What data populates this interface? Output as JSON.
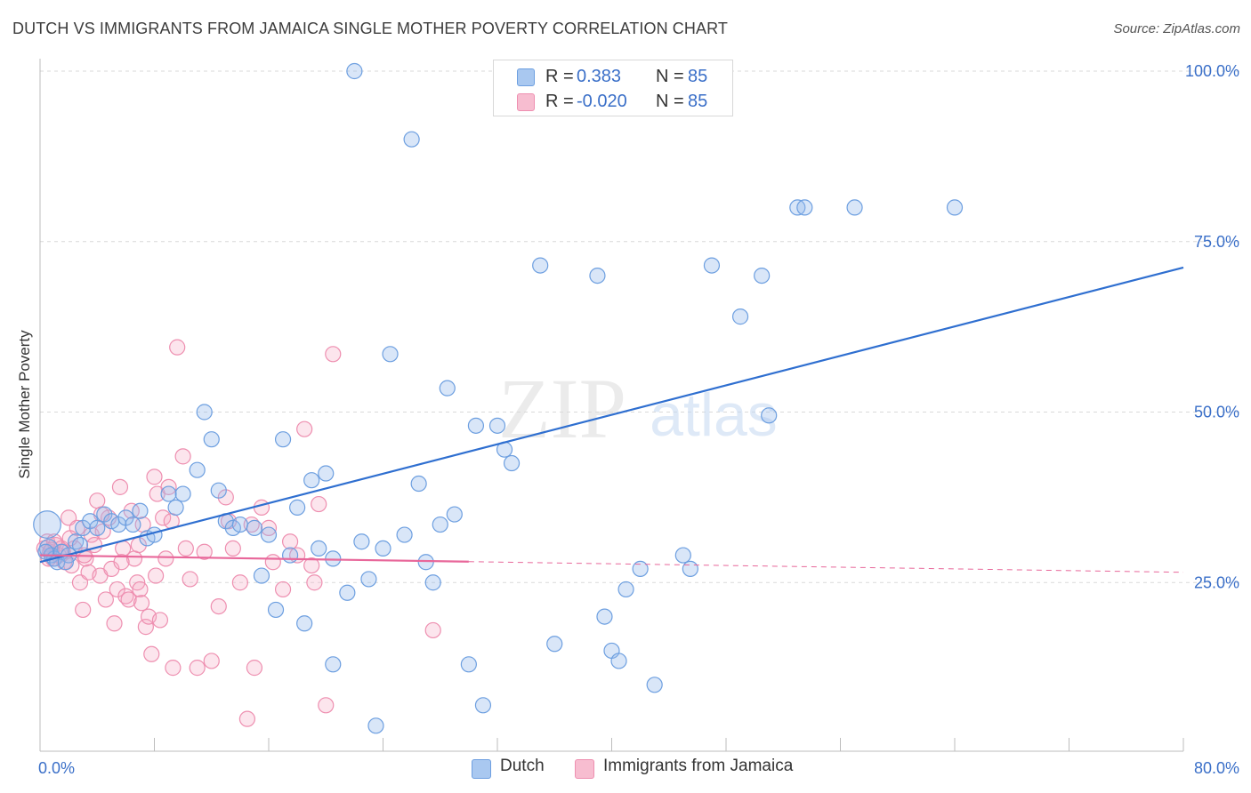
{
  "title": "DUTCH VS IMMIGRANTS FROM JAMAICA SINGLE MOTHER POVERTY CORRELATION CHART",
  "source": "Source: ZipAtlas.com",
  "watermark": {
    "zip": "ZIP",
    "atlas": "atlas"
  },
  "legend": {
    "rows": [
      {
        "r_label": "R =",
        "r_value": "0.383",
        "n_label": "N =",
        "n_value": "85",
        "color": "#a9c8f0"
      },
      {
        "r_label": "R =",
        "r_value": "-0.020",
        "n_label": "N =",
        "n_value": "85",
        "color": "#f7bdd0"
      }
    ]
  },
  "bottom_legend": [
    {
      "label": "Dutch",
      "color": "#a9c8f0"
    },
    {
      "label": "Immigrants from Jamaica",
      "color": "#f7bdd0"
    }
  ],
  "colors": {
    "dutch_fill": "rgba(147,184,236,0.35)",
    "dutch_stroke": "#6d9fe0",
    "dutch_line": "#2f6fd0",
    "jam_fill": "rgba(245,170,195,0.30)",
    "jam_stroke": "#ee8fb0",
    "jam_line": "#e8679a",
    "axis_text": "#3a6fc8",
    "grid": "#d9d9d9"
  },
  "chart_data": {
    "type": "scatter",
    "title": "DUTCH VS IMMIGRANTS FROM JAMAICA SINGLE MOTHER POVERTY CORRELATION CHART",
    "xlabel": "",
    "ylabel": "Single Mother Poverty",
    "xlim": [
      0,
      80
    ],
    "ylim": [
      0,
      105
    ],
    "x_tick_labels": [
      {
        "value": 0,
        "label": "0.0%"
      },
      {
        "value": 80,
        "label": "80.0%"
      }
    ],
    "y_tick_labels": [
      {
        "value": 25,
        "label": "25.0%"
      },
      {
        "value": 50,
        "label": "50.0%"
      },
      {
        "value": 75,
        "label": "75.0%"
      },
      {
        "value": 100,
        "label": "100.0%"
      }
    ],
    "grid": true,
    "series": [
      {
        "name": "Dutch",
        "r": 0.383,
        "n": 85,
        "trend": {
          "x": [
            0,
            80
          ],
          "y": [
            28.0,
            71.2
          ],
          "style": "solid"
        },
        "points": [
          [
            0.5,
            33.5,
            1.8
          ],
          [
            0.6,
            30.0,
            1.2
          ],
          [
            0.8,
            29.0,
            1.0
          ],
          [
            1.0,
            28.5,
            1.0
          ],
          [
            1.2,
            28.0,
            1.0
          ],
          [
            1.5,
            29.5,
            1.0
          ],
          [
            2.0,
            29.0,
            1.0
          ],
          [
            2.5,
            31.0,
            1.0
          ],
          [
            3.0,
            33.0,
            1.0
          ],
          [
            3.5,
            34.0,
            1.0
          ],
          [
            4.0,
            33.0,
            1.0
          ],
          [
            4.5,
            35.0,
            1.0
          ],
          [
            5.0,
            34.0,
            1.0
          ],
          [
            5.5,
            33.5,
            1.0
          ],
          [
            6.0,
            34.5,
            1.0
          ],
          [
            6.5,
            33.5,
            1.0
          ],
          [
            7.0,
            35.5,
            1.0
          ],
          [
            7.5,
            31.5,
            1.0
          ],
          [
            8.0,
            32.0,
            1.0
          ],
          [
            9.0,
            38.0,
            1.0
          ],
          [
            9.5,
            36.0,
            1.0
          ],
          [
            10.0,
            38.0,
            1.0
          ],
          [
            11.0,
            41.5,
            1.0
          ],
          [
            11.5,
            50.0,
            1.0
          ],
          [
            12.0,
            46.0,
            1.0
          ],
          [
            12.5,
            38.5,
            1.0
          ],
          [
            13.0,
            34.0,
            1.0
          ],
          [
            13.5,
            33.0,
            1.0
          ],
          [
            14.0,
            33.5,
            1.0
          ],
          [
            15.0,
            33.0,
            1.0
          ],
          [
            15.5,
            26.0,
            1.0
          ],
          [
            16.0,
            32.0,
            1.0
          ],
          [
            16.5,
            21.0,
            1.0
          ],
          [
            17.0,
            46.0,
            1.0
          ],
          [
            17.5,
            29.0,
            1.0
          ],
          [
            18.0,
            36.0,
            1.0
          ],
          [
            18.5,
            19.0,
            1.0
          ],
          [
            19.0,
            40.0,
            1.0
          ],
          [
            19.5,
            30.0,
            1.0
          ],
          [
            20.0,
            41.0,
            1.0
          ],
          [
            20.5,
            28.5,
            1.0
          ],
          [
            20.5,
            13.0,
            1.0
          ],
          [
            21.5,
            23.5,
            1.0
          ],
          [
            22.0,
            100.0,
            1.0
          ],
          [
            22.5,
            31.0,
            1.0
          ],
          [
            23.0,
            25.5,
            1.0
          ],
          [
            23.5,
            4.0,
            1.0
          ],
          [
            24.0,
            30.0,
            1.0
          ],
          [
            24.5,
            58.5,
            1.0
          ],
          [
            25.5,
            32.0,
            1.0
          ],
          [
            26.0,
            90.0,
            1.0
          ],
          [
            26.5,
            39.5,
            1.0
          ],
          [
            27.0,
            28.0,
            1.0
          ],
          [
            27.5,
            25.0,
            1.0
          ],
          [
            28.0,
            33.5,
            1.0
          ],
          [
            28.5,
            53.5,
            1.0
          ],
          [
            29.0,
            35.0,
            1.0
          ],
          [
            30.0,
            13.0,
            1.0
          ],
          [
            30.5,
            48.0,
            1.0
          ],
          [
            31.0,
            7.0,
            1.0
          ],
          [
            32.0,
            48.0,
            1.0
          ],
          [
            32.5,
            44.5,
            1.0
          ],
          [
            33.0,
            42.5,
            1.0
          ],
          [
            35.0,
            71.5,
            1.0
          ],
          [
            36.0,
            16.0,
            1.0
          ],
          [
            39.0,
            70.0,
            1.0
          ],
          [
            39.5,
            20.0,
            1.0
          ],
          [
            40.0,
            15.0,
            1.0
          ],
          [
            40.5,
            13.5,
            1.0
          ],
          [
            41.0,
            24.0,
            1.0
          ],
          [
            42.0,
            27.0,
            1.0
          ],
          [
            43.0,
            10.0,
            1.0
          ],
          [
            45.0,
            29.0,
            1.0
          ],
          [
            45.5,
            27.0,
            1.0
          ],
          [
            47.0,
            71.5,
            1.0
          ],
          [
            49.0,
            64.0,
            1.0
          ],
          [
            50.5,
            70.0,
            1.0
          ],
          [
            51.0,
            49.5,
            1.0
          ],
          [
            53.0,
            80.0,
            1.0
          ],
          [
            53.5,
            80.0,
            1.0
          ],
          [
            57.0,
            80.0,
            1.0
          ],
          [
            64.0,
            80.0,
            1.0
          ],
          [
            0.4,
            29.5,
            1.0
          ],
          [
            1.8,
            28.0,
            1.0
          ],
          [
            2.8,
            30.5,
            1.0
          ]
        ]
      },
      {
        "name": "Immigrants from Jamaica",
        "r": -0.02,
        "n": 85,
        "trend": {
          "x": [
            0,
            80
          ],
          "y": [
            29.0,
            26.5
          ],
          "solid_until": 30,
          "style": "solid-then-dashed"
        },
        "points": [
          [
            0.3,
            30.0,
            1.0
          ],
          [
            0.5,
            31.0,
            1.0
          ],
          [
            0.7,
            29.5,
            1.0
          ],
          [
            0.9,
            28.5,
            1.0
          ],
          [
            1.1,
            30.5,
            1.0
          ],
          [
            1.3,
            29.0,
            1.0
          ],
          [
            1.5,
            30.0,
            1.0
          ],
          [
            1.7,
            28.0,
            1.0
          ],
          [
            2.0,
            34.5,
            1.0
          ],
          [
            2.2,
            27.5,
            1.0
          ],
          [
            2.4,
            30.0,
            1.0
          ],
          [
            2.6,
            33.0,
            1.0
          ],
          [
            2.8,
            25.0,
            1.0
          ],
          [
            3.0,
            21.0,
            1.0
          ],
          [
            3.2,
            28.5,
            1.0
          ],
          [
            3.4,
            26.5,
            1.0
          ],
          [
            3.6,
            32.0,
            1.0
          ],
          [
            3.8,
            30.5,
            1.0
          ],
          [
            4.0,
            37.0,
            1.0
          ],
          [
            4.2,
            26.0,
            1.0
          ],
          [
            4.4,
            32.5,
            1.0
          ],
          [
            4.6,
            22.5,
            1.0
          ],
          [
            4.8,
            34.5,
            1.0
          ],
          [
            5.0,
            27.0,
            1.0
          ],
          [
            5.2,
            19.0,
            1.0
          ],
          [
            5.4,
            24.0,
            1.0
          ],
          [
            5.6,
            39.0,
            1.0
          ],
          [
            5.8,
            30.0,
            1.0
          ],
          [
            6.0,
            23.0,
            1.0
          ],
          [
            6.2,
            22.5,
            1.0
          ],
          [
            6.4,
            35.5,
            1.0
          ],
          [
            6.6,
            28.5,
            1.0
          ],
          [
            6.8,
            25.0,
            1.0
          ],
          [
            7.0,
            24.0,
            1.0
          ],
          [
            7.2,
            33.5,
            1.0
          ],
          [
            7.4,
            18.5,
            1.0
          ],
          [
            7.6,
            20.0,
            1.0
          ],
          [
            7.8,
            14.5,
            1.0
          ],
          [
            8.0,
            40.5,
            1.0
          ],
          [
            8.2,
            38.0,
            1.0
          ],
          [
            8.4,
            19.5,
            1.0
          ],
          [
            8.6,
            34.5,
            1.0
          ],
          [
            8.8,
            28.5,
            1.0
          ],
          [
            9.0,
            39.0,
            1.0
          ],
          [
            9.3,
            12.5,
            1.0
          ],
          [
            9.6,
            59.5,
            1.0
          ],
          [
            10.0,
            43.5,
            1.0
          ],
          [
            10.5,
            25.5,
            1.0
          ],
          [
            11.0,
            12.5,
            1.0
          ],
          [
            12.0,
            13.5,
            1.0
          ],
          [
            12.5,
            21.5,
            1.0
          ],
          [
            13.0,
            37.5,
            1.0
          ],
          [
            13.5,
            30.0,
            1.0
          ],
          [
            14.0,
            25.0,
            1.0
          ],
          [
            14.5,
            5.0,
            1.0
          ],
          [
            15.0,
            12.5,
            1.0
          ],
          [
            15.5,
            36.0,
            1.0
          ],
          [
            16.0,
            33.0,
            1.0
          ],
          [
            17.0,
            24.0,
            1.0
          ],
          [
            17.5,
            31.0,
            1.0
          ],
          [
            18.5,
            47.5,
            1.0
          ],
          [
            19.0,
            27.5,
            1.0
          ],
          [
            19.5,
            36.5,
            1.0
          ],
          [
            20.0,
            7.0,
            1.0
          ],
          [
            20.5,
            58.5,
            1.0
          ],
          [
            1.6,
            29.5,
            1.0
          ],
          [
            2.1,
            31.5,
            1.0
          ],
          [
            3.1,
            29.0,
            1.0
          ],
          [
            0.6,
            28.5,
            1.0
          ],
          [
            1.0,
            31.0,
            1.0
          ],
          [
            4.3,
            35.0,
            1.0
          ],
          [
            5.7,
            28.0,
            1.0
          ],
          [
            6.9,
            30.5,
            1.0
          ],
          [
            7.1,
            22.0,
            1.0
          ],
          [
            8.1,
            26.0,
            1.0
          ],
          [
            9.2,
            34.0,
            1.0
          ],
          [
            10.2,
            30.0,
            1.0
          ],
          [
            11.5,
            29.5,
            1.0
          ],
          [
            13.2,
            34.0,
            1.0
          ],
          [
            14.8,
            33.5,
            1.0
          ],
          [
            16.3,
            28.0,
            1.0
          ],
          [
            18.0,
            29.0,
            1.0
          ],
          [
            19.2,
            25.0,
            1.0
          ],
          [
            27.5,
            18.0,
            1.0
          ],
          [
            0.8,
            29.8,
            1.0
          ]
        ]
      }
    ]
  }
}
